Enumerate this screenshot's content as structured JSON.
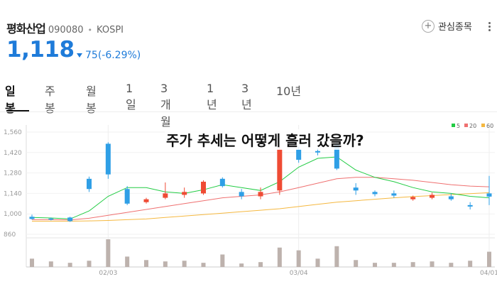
{
  "stock": {
    "name": "평화산업",
    "code": "090080",
    "market": "KOSPI",
    "price": "1,118",
    "change": "75(-6.29%)"
  },
  "watch_label": "관심종목",
  "tabs": [
    "일봉",
    "주봉",
    "월봉",
    "1일",
    "3개월",
    "1년",
    "3년",
    "10년"
  ],
  "overlay_text": "주가 추세는 어떻게 흘러 갔을까?",
  "colors": {
    "up": "#ef4b34",
    "down": "#2f9fe6",
    "ma5": "#22cc44",
    "ma20": "#ef7070",
    "ma60": "#f5b840",
    "volume": "#bdb2ad",
    "price": "#1e7bd9"
  },
  "chart_data": {
    "type": "candlestick",
    "y_ticks": [
      "1,560",
      "1,420",
      "1,280",
      "1,140",
      "1,000",
      "860"
    ],
    "ylim": [
      860,
      1560
    ],
    "x_ticks": [
      {
        "index": 4,
        "label": "02/03"
      },
      {
        "index": 14,
        "label": "03/04"
      },
      {
        "index": 24,
        "label": "04/01"
      }
    ],
    "legend": [
      "5",
      "20",
      "60"
    ],
    "candles": [
      {
        "o": 980,
        "h": 995,
        "l": 960,
        "c": 965
      },
      {
        "o": 968,
        "h": 975,
        "l": 955,
        "c": 960
      },
      {
        "o": 975,
        "h": 980,
        "l": 945,
        "c": 950
      },
      {
        "o": 1240,
        "h": 1255,
        "l": 1150,
        "c": 1170
      },
      {
        "o": 1480,
        "h": 1490,
        "l": 1240,
        "c": 1270
      },
      {
        "o": 1170,
        "h": 1190,
        "l": 1060,
        "c": 1070
      },
      {
        "o": 1080,
        "h": 1110,
        "l": 1070,
        "c": 1100
      },
      {
        "o": 1110,
        "h": 1215,
        "l": 1100,
        "c": 1140
      },
      {
        "o": 1130,
        "h": 1180,
        "l": 1110,
        "c": 1150
      },
      {
        "o": 1140,
        "h": 1230,
        "l": 1130,
        "c": 1220
      },
      {
        "o": 1240,
        "h": 1250,
        "l": 1180,
        "c": 1190
      },
      {
        "o": 1150,
        "h": 1170,
        "l": 1100,
        "c": 1120
      },
      {
        "o": 1120,
        "h": 1180,
        "l": 1100,
        "c": 1150
      },
      {
        "o": 1160,
        "h": 1460,
        "l": 1130,
        "c": 1440
      },
      {
        "o": 1440,
        "h": 1460,
        "l": 1350,
        "c": 1370
      },
      {
        "o": 1430,
        "h": 1450,
        "l": 1400,
        "c": 1420
      },
      {
        "o": 1480,
        "h": 1500,
        "l": 1300,
        "c": 1310
      },
      {
        "o": 1180,
        "h": 1210,
        "l": 1130,
        "c": 1160
      },
      {
        "o": 1150,
        "h": 1160,
        "l": 1120,
        "c": 1135
      },
      {
        "o": 1140,
        "h": 1160,
        "l": 1110,
        "c": 1125
      },
      {
        "o": 1100,
        "h": 1125,
        "l": 1090,
        "c": 1115
      },
      {
        "o": 1110,
        "h": 1145,
        "l": 1100,
        "c": 1130
      },
      {
        "o": 1120,
        "h": 1140,
        "l": 1090,
        "c": 1100
      },
      {
        "o": 1060,
        "h": 1080,
        "l": 1030,
        "c": 1050
      },
      {
        "o": 1140,
        "h": 1260,
        "l": 1060,
        "c": 1118
      }
    ],
    "volumes": [
      12,
      8,
      6,
      9,
      40,
      15,
      10,
      8,
      9,
      6,
      18,
      5,
      7,
      28,
      24,
      12,
      30,
      10,
      6,
      6,
      7,
      8,
      6,
      9,
      22
    ],
    "ma5": [
      975,
      972,
      965,
      1020,
      1120,
      1180,
      1180,
      1150,
      1140,
      1165,
      1200,
      1180,
      1160,
      1220,
      1320,
      1380,
      1390,
      1300,
      1250,
      1220,
      1180,
      1150,
      1140,
      1120,
      1110
    ],
    "ma20": [
      960,
      960,
      958,
      970,
      990,
      1010,
      1030,
      1050,
      1070,
      1090,
      1110,
      1120,
      1130,
      1150,
      1180,
      1210,
      1240,
      1250,
      1250,
      1240,
      1230,
      1215,
      1200,
      1190,
      1185
    ],
    "ma60": [
      950,
      950,
      950,
      952,
      955,
      960,
      965,
      975,
      985,
      995,
      1005,
      1015,
      1025,
      1035,
      1050,
      1065,
      1080,
      1090,
      1100,
      1110,
      1118,
      1125,
      1132,
      1138,
      1145
    ]
  }
}
